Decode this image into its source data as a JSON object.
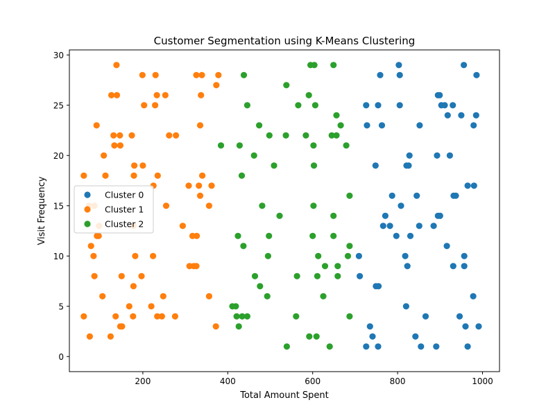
{
  "chart_data": {
    "type": "scatter",
    "title": "Customer Segmentation using K-Means Clustering",
    "xlabel": "Total Amount Spent",
    "ylabel": "Visit Frequency",
    "xlim": [
      27,
      1040
    ],
    "ylim": [
      -1.5,
      30.5
    ],
    "xticks": [
      200,
      400,
      600,
      800,
      1000
    ],
    "yticks": [
      0,
      5,
      10,
      15,
      20,
      25,
      30
    ],
    "grid": false,
    "legend_position": "center-left",
    "series": [
      {
        "name": "Cluster 0",
        "color": "#1f77b4",
        "points": [
          [
            803,
            29
          ],
          [
            956,
            29
          ],
          [
            759,
            28
          ],
          [
            805,
            28
          ],
          [
            986,
            28
          ],
          [
            895,
            26
          ],
          [
            899,
            26
          ],
          [
            726,
            25
          ],
          [
            754,
            25
          ],
          [
            805,
            25
          ],
          [
            903,
            25
          ],
          [
            911,
            25
          ],
          [
            930,
            25
          ],
          [
            728,
            23
          ],
          [
            763,
            23
          ],
          [
            852,
            23
          ],
          [
            918,
            24
          ],
          [
            923,
            20
          ],
          [
            950,
            24
          ],
          [
            979,
            23
          ],
          [
            985,
            24
          ],
          [
            748,
            19
          ],
          [
            821,
            19
          ],
          [
            826,
            19
          ],
          [
            828,
            20
          ],
          [
            893,
            20
          ],
          [
            965,
            17
          ],
          [
            980,
            17
          ],
          [
            787,
            16
          ],
          [
            845,
            16
          ],
          [
            932,
            16
          ],
          [
            937,
            16
          ],
          [
            808,
            15
          ],
          [
            771,
            14
          ],
          [
            895,
            14
          ],
          [
            900,
            14
          ],
          [
            766,
            13
          ],
          [
            782,
            13
          ],
          [
            851,
            13
          ],
          [
            885,
            13
          ],
          [
            797,
            12
          ],
          [
            830,
            12
          ],
          [
            916,
            11
          ],
          [
            709,
            10
          ],
          [
            818,
            10
          ],
          [
            957,
            10
          ],
          [
            823,
            9
          ],
          [
            931,
            9
          ],
          [
            957,
            9
          ],
          [
            711,
            8
          ],
          [
            749,
            7
          ],
          [
            755,
            7
          ],
          [
            978,
            6
          ],
          [
            820,
            5
          ],
          [
            866,
            4
          ],
          [
            946,
            4
          ],
          [
            735,
            3
          ],
          [
            960,
            3
          ],
          [
            991,
            3
          ],
          [
            741,
            2
          ],
          [
            842,
            2
          ],
          [
            726,
            1
          ],
          [
            754,
            1
          ],
          [
            855,
            1
          ],
          [
            891,
            1
          ],
          [
            965,
            1
          ]
        ]
      },
      {
        "name": "Cluster 1",
        "color": "#ff7f0e",
        "points": [
          [
            138,
            29
          ],
          [
            199,
            28
          ],
          [
            230,
            28
          ],
          [
            326,
            28
          ],
          [
            339,
            28
          ],
          [
            378,
            28
          ],
          [
            373,
            27
          ],
          [
            126,
            26
          ],
          [
            139,
            26
          ],
          [
            233,
            26
          ],
          [
            253,
            26
          ],
          [
            337,
            26
          ],
          [
            203,
            25
          ],
          [
            229,
            25
          ],
          [
            91,
            23
          ],
          [
            335,
            23
          ],
          [
            131,
            22
          ],
          [
            146,
            22
          ],
          [
            174,
            22
          ],
          [
            262,
            22
          ],
          [
            278,
            22
          ],
          [
            133,
            21
          ],
          [
            147,
            21
          ],
          [
            108,
            20
          ],
          [
            180,
            19
          ],
          [
            200,
            19
          ],
          [
            112,
            18
          ],
          [
            179,
            18
          ],
          [
            235,
            18
          ],
          [
            340,
            18
          ],
          [
            61,
            18
          ],
          [
            73,
            15
          ],
          [
            225,
            17
          ],
          [
            308,
            17
          ],
          [
            332,
            17
          ],
          [
            362,
            17
          ],
          [
            335,
            16
          ],
          [
            86,
            15
          ],
          [
            255,
            15
          ],
          [
            356,
            15
          ],
          [
            97,
            13
          ],
          [
            178,
            13
          ],
          [
            294,
            13
          ],
          [
            92,
            12
          ],
          [
            96,
            12
          ],
          [
            317,
            12
          ],
          [
            327,
            12
          ],
          [
            78,
            11
          ],
          [
            84,
            10
          ],
          [
            182,
            10
          ],
          [
            224,
            10
          ],
          [
            310,
            9
          ],
          [
            320,
            9
          ],
          [
            326,
            9
          ],
          [
            86,
            8
          ],
          [
            150,
            8
          ],
          [
            197,
            8
          ],
          [
            178,
            7
          ],
          [
            105,
            6
          ],
          [
            248,
            6
          ],
          [
            356,
            6
          ],
          [
            168,
            5
          ],
          [
            220,
            5
          ],
          [
            61,
            4
          ],
          [
            136,
            4
          ],
          [
            177,
            4
          ],
          [
            234,
            4
          ],
          [
            245,
            4
          ],
          [
            276,
            4
          ],
          [
            147,
            3
          ],
          [
            151,
            3
          ],
          [
            372,
            3
          ],
          [
            75,
            2
          ],
          [
            124,
            2
          ]
        ]
      },
      {
        "name": "Cluster 2",
        "color": "#2ca02c",
        "points": [
          [
            595,
            29
          ],
          [
            604,
            29
          ],
          [
            649,
            29
          ],
          [
            438,
            28
          ],
          [
            538,
            27
          ],
          [
            591,
            26
          ],
          [
            446,
            25
          ],
          [
            566,
            25
          ],
          [
            606,
            25
          ],
          [
            656,
            24
          ],
          [
            666,
            23
          ],
          [
            474,
            23
          ],
          [
            498,
            22
          ],
          [
            537,
            22
          ],
          [
            584,
            22
          ],
          [
            645,
            22
          ],
          [
            656,
            22
          ],
          [
            384,
            21
          ],
          [
            428,
            21
          ],
          [
            602,
            21
          ],
          [
            679,
            21
          ],
          [
            462,
            20
          ],
          [
            509,
            19
          ],
          [
            603,
            19
          ],
          [
            433,
            18
          ],
          [
            687,
            16
          ],
          [
            481,
            15
          ],
          [
            602,
            15
          ],
          [
            522,
            14
          ],
          [
            649,
            14
          ],
          [
            424,
            12
          ],
          [
            497,
            12
          ],
          [
            600,
            12
          ],
          [
            649,
            12
          ],
          [
            437,
            11
          ],
          [
            687,
            11
          ],
          [
            613,
            10
          ],
          [
            495,
            10
          ],
          [
            683,
            10
          ],
          [
            629,
            9
          ],
          [
            659,
            9
          ],
          [
            464,
            8
          ],
          [
            563,
            8
          ],
          [
            611,
            8
          ],
          [
            659,
            8
          ],
          [
            476,
            7
          ],
          [
            493,
            6
          ],
          [
            625,
            6
          ],
          [
            411,
            5
          ],
          [
            419,
            5
          ],
          [
            421,
            4
          ],
          [
            434,
            4
          ],
          [
            446,
            4
          ],
          [
            561,
            4
          ],
          [
            687,
            4
          ],
          [
            426,
            3
          ],
          [
            592,
            2
          ],
          [
            609,
            2
          ],
          [
            539,
            1
          ],
          [
            640,
            1
          ]
        ]
      }
    ]
  }
}
